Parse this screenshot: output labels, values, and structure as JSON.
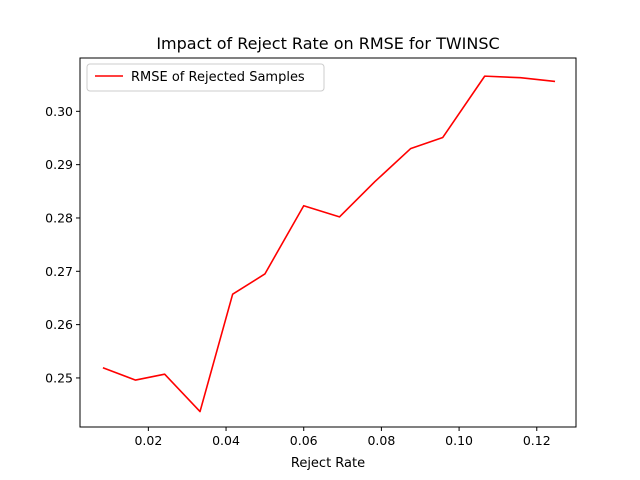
{
  "chart_data": {
    "type": "line",
    "title": "Impact of Reject Rate on RMSE for TWINSC",
    "xlabel": "Reject Rate",
    "ylabel": "",
    "xlim": [
      0.0024,
      0.1301
    ],
    "ylim": [
      0.2408,
      0.31
    ],
    "x_ticks": [
      0.02,
      0.04,
      0.06,
      0.08,
      0.1,
      0.12
    ],
    "x_tick_labels": [
      "0.02",
      "0.04",
      "0.06",
      "0.08",
      "0.10",
      "0.12"
    ],
    "y_ticks": [
      0.25,
      0.26,
      0.27,
      0.28,
      0.29,
      0.3
    ],
    "y_tick_labels": [
      "0.25",
      "0.26",
      "0.27",
      "0.28",
      "0.29",
      "0.30"
    ],
    "grid": false,
    "legend_position": "top-left",
    "series": [
      {
        "name": "RMSE of Rejected Samples",
        "color": "#ff0000",
        "x": [
          0.0083,
          0.0167,
          0.0242,
          0.0333,
          0.0417,
          0.05,
          0.06,
          0.0692,
          0.0783,
          0.0875,
          0.0958,
          0.1066,
          0.1158,
          0.1247
        ],
        "y": [
          0.2519,
          0.2496,
          0.2507,
          0.2437,
          0.2657,
          0.2695,
          0.2823,
          0.2802,
          0.2868,
          0.293,
          0.2951,
          0.3066,
          0.3063,
          0.3056
        ]
      }
    ]
  }
}
